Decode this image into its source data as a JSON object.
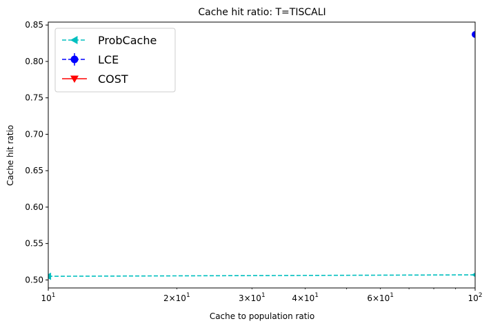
{
  "chart_data": {
    "type": "line",
    "title": "Cache hit ratio: T=TISCALI",
    "xlabel": "Cache to population ratio",
    "ylabel": "Cache hit ratio",
    "xscale": "log",
    "xlim": [
      10,
      100
    ],
    "ylim": [
      0.489,
      0.854
    ],
    "x_major_ticks": [
      {
        "value": 10,
        "base": "10",
        "exp": "1"
      },
      {
        "value": 100,
        "base": "10",
        "exp": "2"
      }
    ],
    "x_minor_labeled_ticks": [
      {
        "value": 20,
        "mant": "2",
        "base": "10",
        "exp": "1"
      },
      {
        "value": 30,
        "mant": "3",
        "base": "10",
        "exp": "1"
      },
      {
        "value": 40,
        "mant": "4",
        "base": "10",
        "exp": "1"
      },
      {
        "value": 60,
        "mant": "6",
        "base": "10",
        "exp": "1"
      }
    ],
    "x_minor_unlabeled_ticks": [
      50,
      70,
      80,
      90
    ],
    "y_ticks": [
      "0.50",
      "0.55",
      "0.60",
      "0.65",
      "0.70",
      "0.75",
      "0.80",
      "0.85"
    ],
    "grid": false,
    "legend_position": "top-left",
    "series": [
      {
        "name": "ProbCache",
        "color": "#00bfbf",
        "line": "dashed",
        "marker": "triangle-left",
        "x": [
          10,
          100
        ],
        "y": [
          0.505,
          0.507
        ]
      },
      {
        "name": "LCE",
        "color": "#0000ff",
        "line": "dashed",
        "marker": "circle",
        "errorbars": true,
        "x": [
          100
        ],
        "y": [
          0.837
        ]
      },
      {
        "name": "COST",
        "color": "#ff0000",
        "line": "solid",
        "marker": "triangle-down",
        "x": [],
        "y": []
      }
    ]
  }
}
